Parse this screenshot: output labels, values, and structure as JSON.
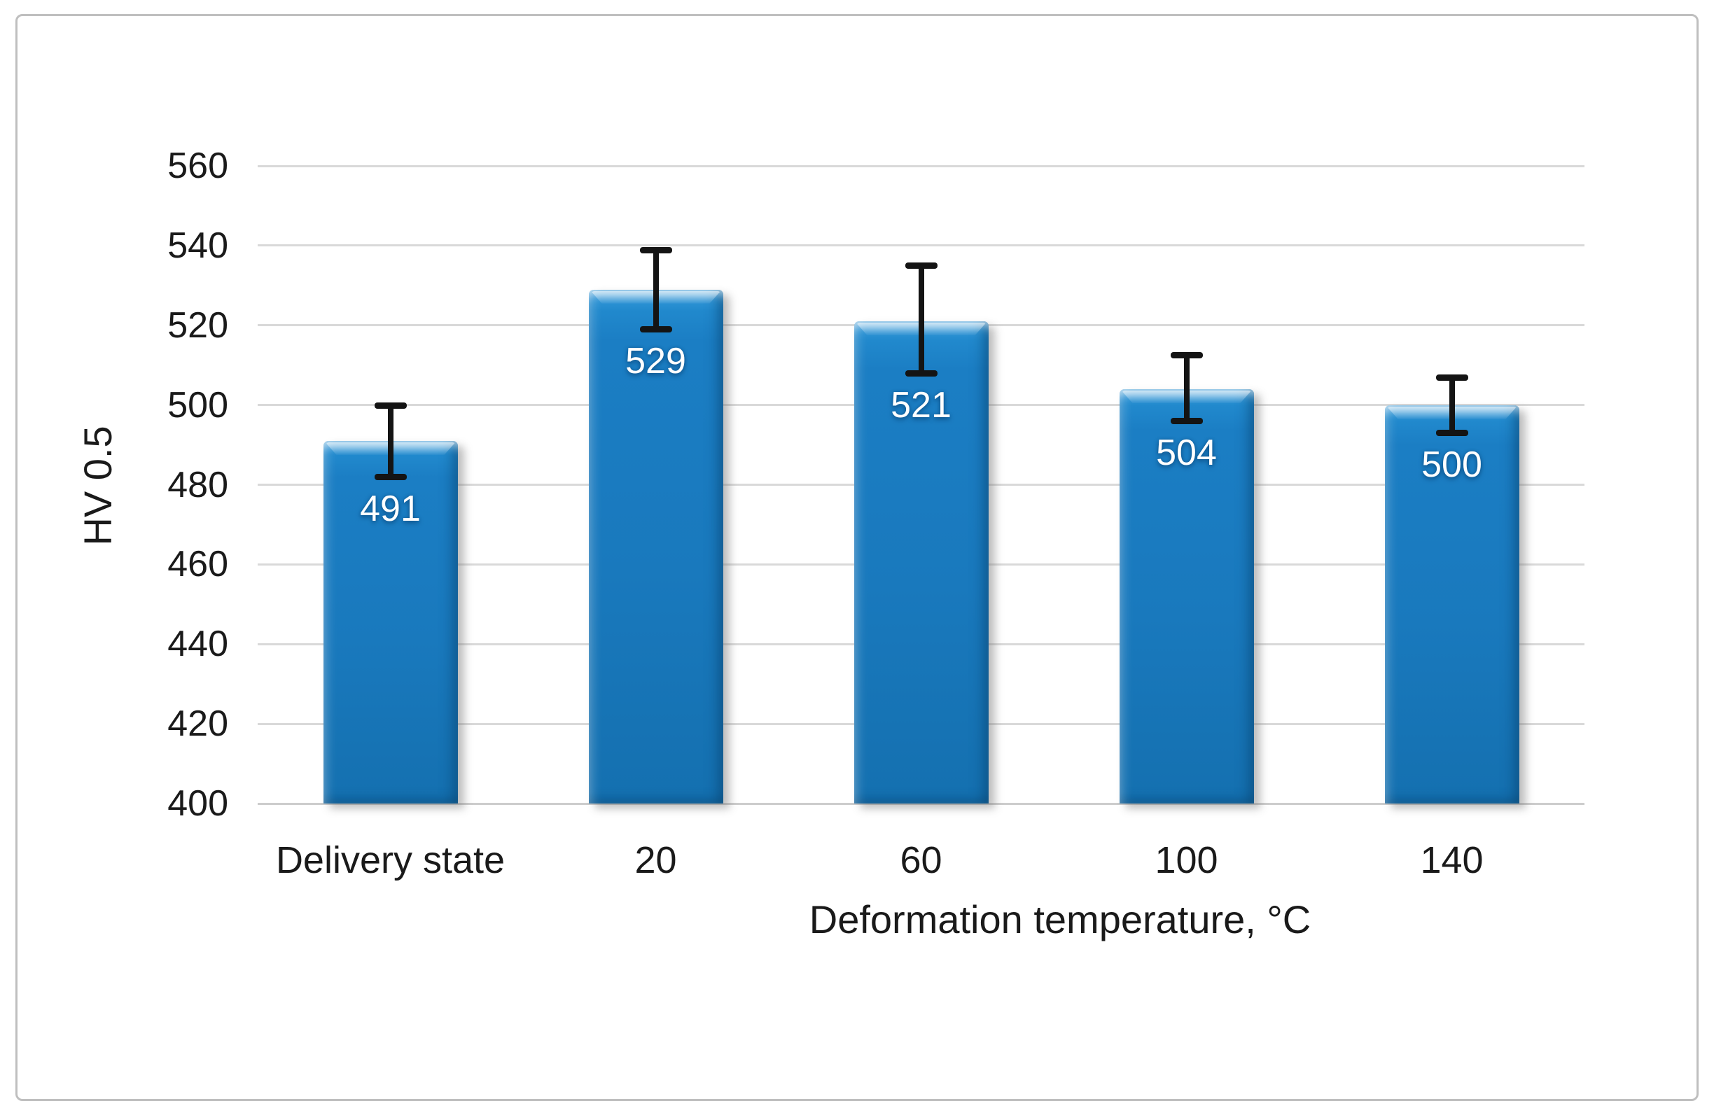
{
  "panel": {
    "background_color": "#ffffff",
    "border_color": "#bfbfbf"
  },
  "chart_data": {
    "type": "bar",
    "title": "",
    "xlabel": "Deformation temperature, °C",
    "ylabel": "HV 0.5",
    "categories": [
      "Delivery state",
      "20",
      "60",
      "100",
      "140"
    ],
    "values": [
      491,
      529,
      521,
      504,
      500
    ],
    "data_labels": [
      "491",
      "529",
      "521",
      "504",
      "500"
    ],
    "error_plus": [
      9,
      10,
      14,
      8.5,
      7
    ],
    "error_minus": [
      9,
      10,
      13,
      8,
      7
    ],
    "ylim": [
      400,
      560
    ],
    "yticks": [
      400,
      420,
      440,
      460,
      480,
      500,
      520,
      540,
      560
    ],
    "grid": true,
    "legend": false,
    "bar_color": "#1b7ec4",
    "bar_highlight_color": "#49a8e0",
    "bar_shadow_color": "#0e5f9d",
    "error_bar_color": "#141414",
    "gridline_color": "#d9d9d9",
    "data_label_color": "#ffffff",
    "axis_text_color": "#1a1a1a"
  }
}
